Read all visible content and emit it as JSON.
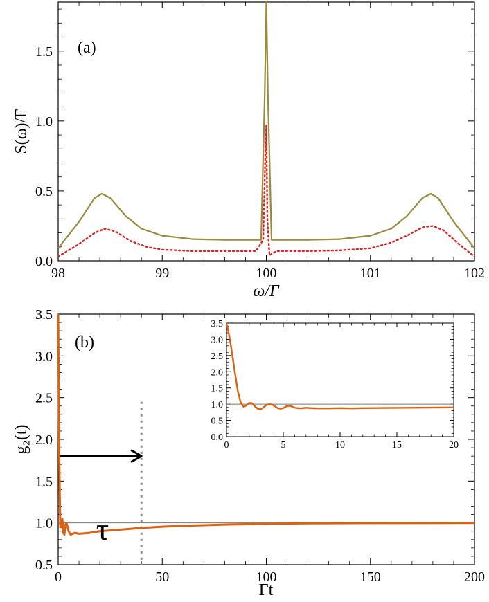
{
  "chart_data": [
    {
      "type": "line",
      "panel_label": "(a)",
      "xlabel": "ω/Γ",
      "ylabel": "S(ω)/F",
      "xlim": [
        98,
        102
      ],
      "ylim": [
        0,
        1.85
      ],
      "xticks": [
        98,
        99,
        100,
        101,
        102
      ],
      "xtick_labels": [
        "98",
        "99",
        "100",
        "101",
        "102"
      ],
      "yticks": [
        0,
        0.5,
        1.0,
        1.5
      ],
      "ytick_labels": [
        "0.0",
        "0.5",
        "1.0",
        "1.5"
      ],
      "grid": false,
      "series": [
        {
          "style": "solid",
          "color": "#9b8a3c",
          "x": [
            98.0,
            98.2,
            98.35,
            98.42,
            98.5,
            98.65,
            98.8,
            99.0,
            99.3,
            99.6,
            99.85,
            99.95,
            99.985,
            100.0,
            100.015,
            100.05,
            100.15,
            100.4,
            100.7,
            101.0,
            101.2,
            101.35,
            101.5,
            101.58,
            101.65,
            101.8,
            102.0
          ],
          "y": [
            0.09,
            0.28,
            0.45,
            0.48,
            0.45,
            0.32,
            0.23,
            0.18,
            0.155,
            0.15,
            0.15,
            0.15,
            1.2,
            1.85,
            1.2,
            0.15,
            0.15,
            0.15,
            0.155,
            0.18,
            0.23,
            0.32,
            0.45,
            0.48,
            0.45,
            0.28,
            0.09
          ]
        },
        {
          "style": "dotted",
          "color": "#e02020",
          "x": [
            98.0,
            98.2,
            98.35,
            98.45,
            98.55,
            98.7,
            98.85,
            99.0,
            99.3,
            99.6,
            99.9,
            99.97,
            99.99,
            100.0,
            100.01,
            100.03,
            100.1,
            100.4,
            100.7,
            101.0,
            101.2,
            101.35,
            101.5,
            101.6,
            101.7,
            101.85,
            102.0
          ],
          "y": [
            0.03,
            0.12,
            0.2,
            0.23,
            0.21,
            0.14,
            0.1,
            0.08,
            0.07,
            0.07,
            0.07,
            0.15,
            0.75,
            0.97,
            0.3,
            0.04,
            0.07,
            0.07,
            0.075,
            0.09,
            0.13,
            0.18,
            0.24,
            0.25,
            0.22,
            0.12,
            0.03
          ]
        }
      ]
    },
    {
      "type": "line",
      "panel_label": "(b)",
      "xlabel": "Γt",
      "ylabel": "g₂(t)",
      "xlim": [
        0,
        200
      ],
      "ylim": [
        0.5,
        3.5
      ],
      "xticks": [
        0,
        50,
        100,
        150,
        200
      ],
      "xtick_labels": [
        "0",
        "50",
        "100",
        "150",
        "200"
      ],
      "yticks": [
        0.5,
        1.0,
        1.5,
        2.0,
        2.5,
        3.0,
        3.5
      ],
      "ytick_labels": [
        "0.5",
        "1.0",
        "1.5",
        "2.0",
        "2.5",
        "3.0",
        "3.5"
      ],
      "grid": false,
      "reference_line_y": 1.0,
      "vline_x": 40,
      "vline_top_y": 2.45,
      "arrow": {
        "from_x": 0,
        "to_x": 40,
        "y": 1.8,
        "label": "τ"
      },
      "series": [
        {
          "color": "#e06010",
          "x": [
            0,
            0.5,
            1.0,
            1.5,
            2.0,
            2.5,
            3.0,
            3.5,
            4.0,
            5.0,
            6.0,
            8.0,
            10,
            15,
            20,
            30,
            40,
            50,
            60,
            80,
            100,
            120,
            150,
            200
          ],
          "y": [
            3.5,
            1.8,
            0.95,
            0.95,
            1.05,
            0.88,
            0.86,
            0.98,
            1.0,
            0.9,
            0.86,
            0.88,
            0.87,
            0.88,
            0.9,
            0.92,
            0.94,
            0.955,
            0.965,
            0.98,
            0.99,
            0.995,
            0.998,
            1.0
          ]
        }
      ],
      "inset": {
        "xlim": [
          0,
          20
        ],
        "ylim": [
          0,
          3.5
        ],
        "xticks": [
          0,
          5,
          10,
          15,
          20
        ],
        "xtick_labels": [
          "0",
          "5",
          "10",
          "15",
          "20"
        ],
        "yticks": [
          0,
          0.5,
          1.0,
          1.5,
          2.0,
          2.5,
          3.0,
          3.5
        ],
        "ytick_labels": [
          "0.0",
          "0.5",
          "1.0",
          "1.5",
          "2.0",
          "2.5",
          "3.0",
          "3.5"
        ],
        "reference_line_y": 1.0,
        "x": [
          0,
          0.25,
          0.5,
          0.75,
          1.0,
          1.25,
          1.5,
          1.75,
          2.0,
          2.25,
          2.5,
          2.75,
          3.0,
          3.25,
          3.5,
          3.75,
          4.0,
          4.25,
          4.5,
          4.75,
          5.0,
          5.25,
          5.5,
          5.75,
          6.0,
          6.5,
          7.0,
          7.5,
          8.0,
          9.0,
          10,
          11,
          12,
          14,
          16,
          18,
          20
        ],
        "y": [
          3.5,
          3.1,
          2.55,
          1.95,
          1.4,
          1.05,
          0.92,
          0.96,
          1.04,
          1.03,
          0.93,
          0.86,
          0.84,
          0.9,
          0.97,
          1.0,
          0.99,
          0.94,
          0.88,
          0.86,
          0.88,
          0.93,
          0.95,
          0.93,
          0.89,
          0.87,
          0.89,
          0.88,
          0.87,
          0.87,
          0.88,
          0.87,
          0.88,
          0.885,
          0.89,
          0.895,
          0.9
        ]
      }
    }
  ]
}
